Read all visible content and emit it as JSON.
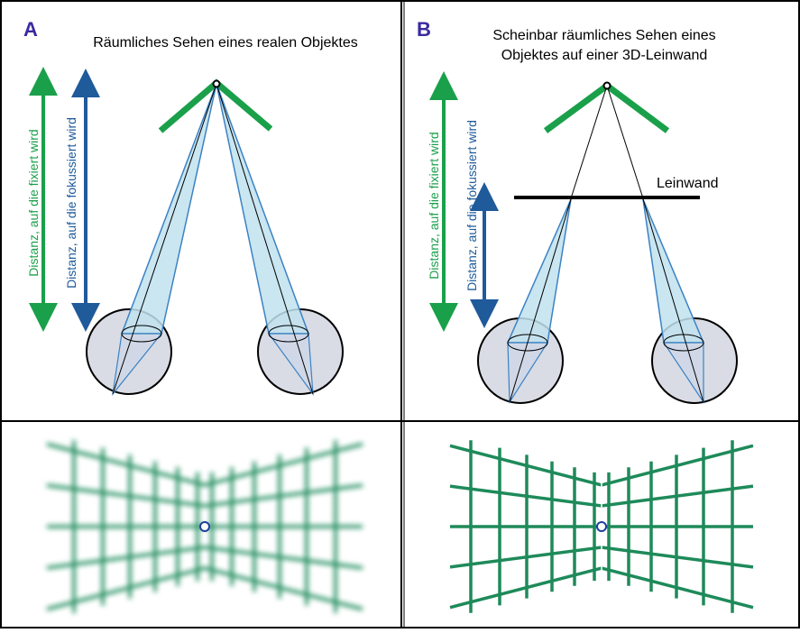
{
  "panels": [
    {
      "label": "A",
      "title": [
        "Räumliches Sehen eines realen Objektes"
      ],
      "fixation_label": "Distanz, auf die fixiert wird",
      "focus_label": "Distanz, auf die fokussiert wird"
    },
    {
      "label": "B",
      "title": [
        "Scheinbar räumliches Sehen eines",
        "Objektes auf einer 3D-Leinwand"
      ],
      "fixation_label": "Distanz, auf die fixiert wird",
      "focus_label": "Distanz, auf die fokussiert wird",
      "screen_label": "Leinwand"
    }
  ]
}
